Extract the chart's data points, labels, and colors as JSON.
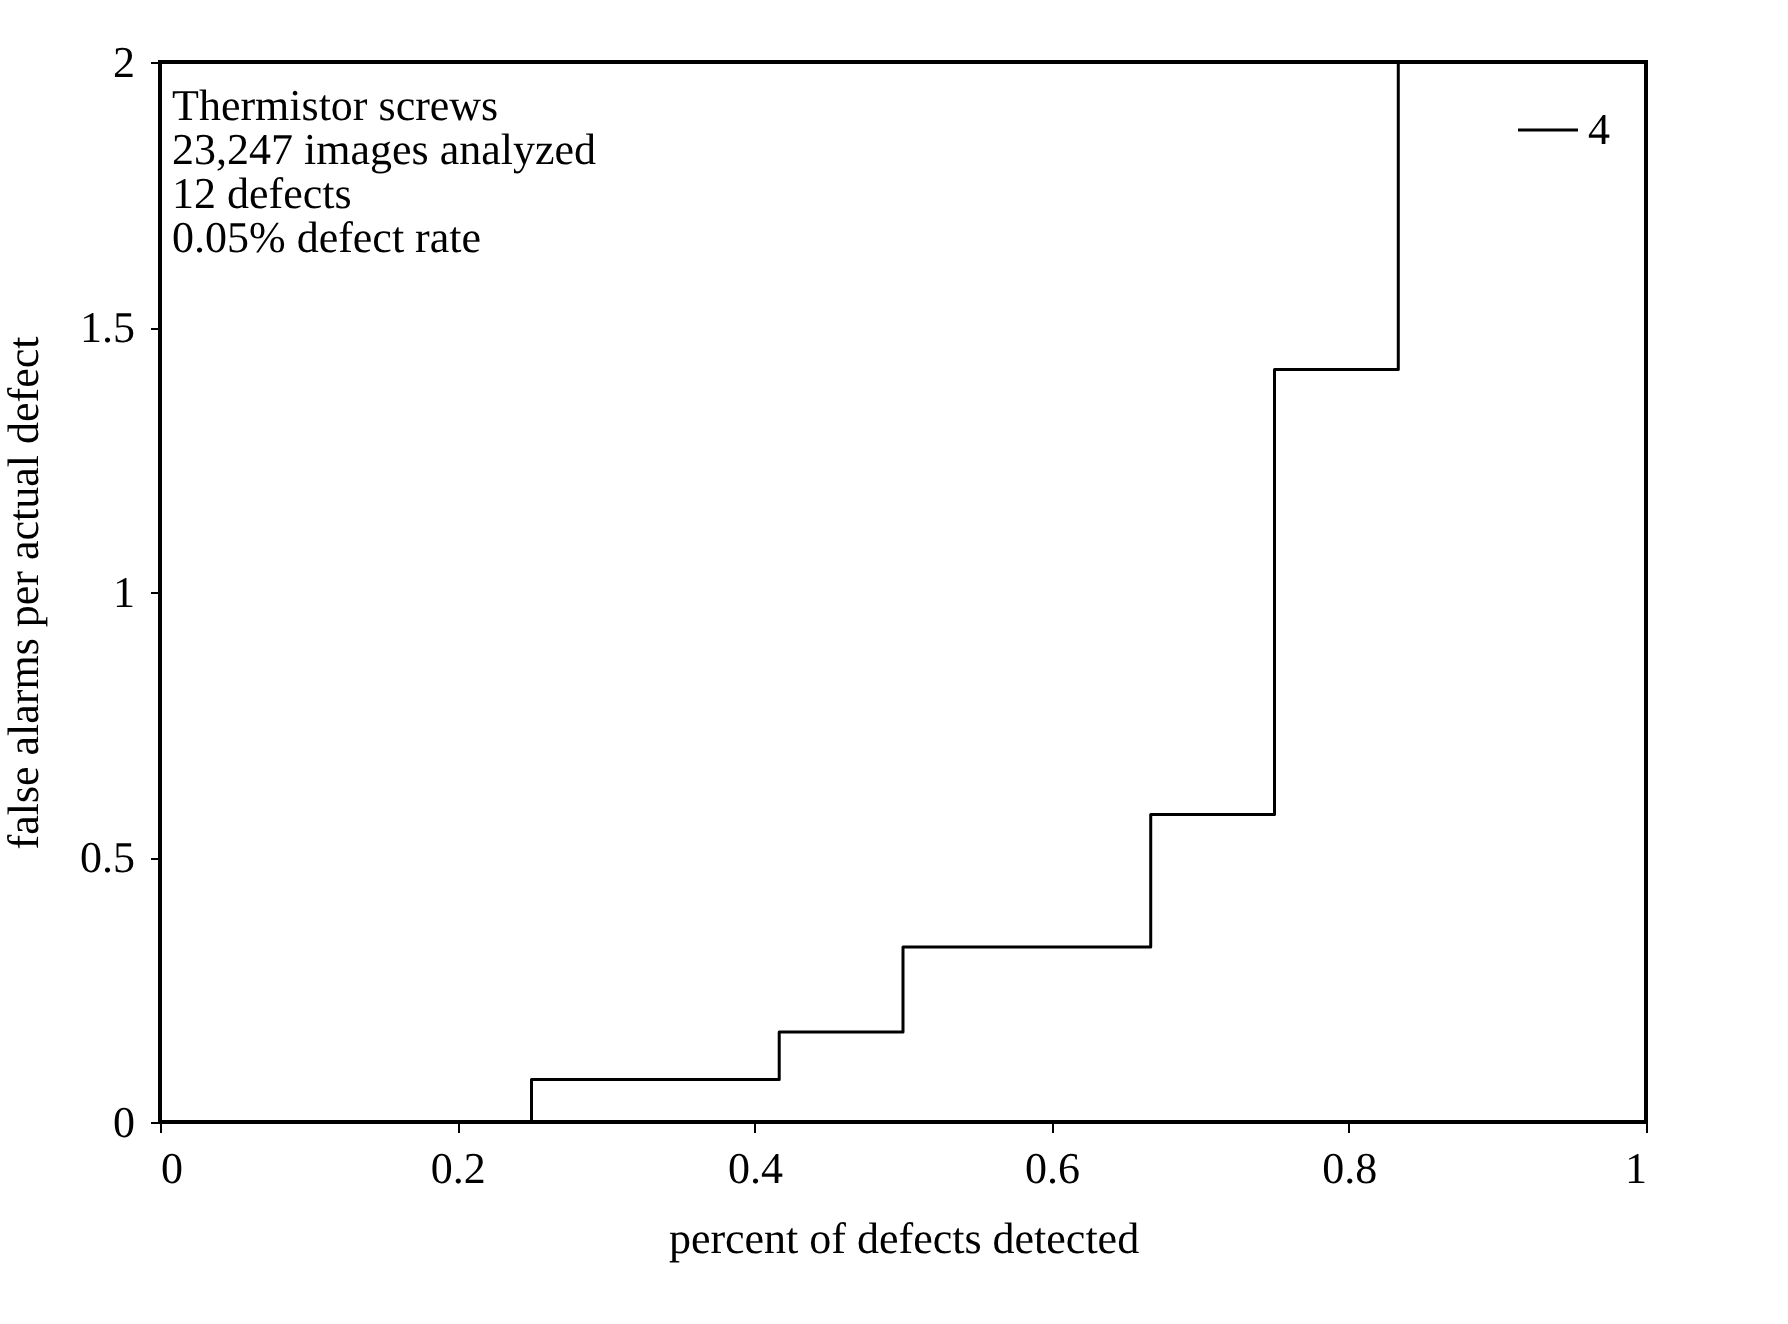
{
  "chart_data": {
    "type": "step",
    "xlabel": "percent of defects detected",
    "ylabel": "false alarms per actual defect",
    "annotations": [
      "Thermistor screws",
      "23,247 images analyzed",
      "12 defects",
      "0.05% defect rate"
    ],
    "series": [
      {
        "name": "4",
        "color": "#000000",
        "x": [
          0.25,
          0.25,
          0.4167,
          0.5,
          0.6667,
          0.75,
          0.8333
        ],
        "values": [
          0,
          0.08,
          0.17,
          0.33,
          0.58,
          1.42,
          2
        ]
      }
    ],
    "xlim": [
      0,
      1
    ],
    "xticks": [
      0,
      0.2,
      0.4,
      0.6,
      0.8,
      1
    ],
    "ylim": [
      0,
      2
    ],
    "yticks": [
      0,
      0.5,
      1,
      1.5,
      2
    ],
    "grid": false,
    "legend": "top right"
  }
}
